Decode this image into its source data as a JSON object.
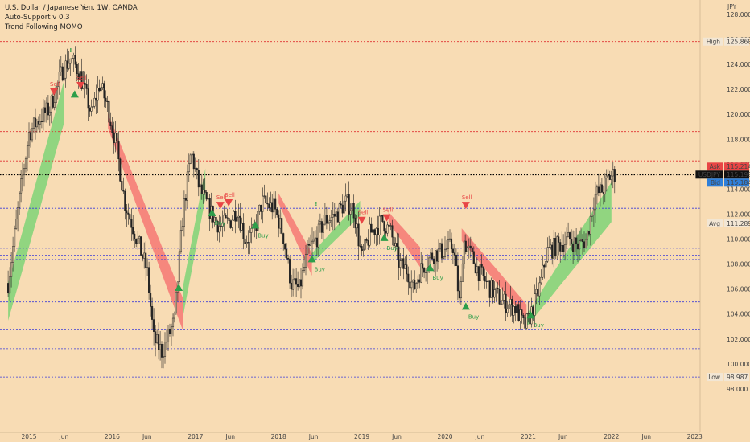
{
  "header": {
    "title": "U.S. Dollar / Japanese Yen, 1W, OANDA",
    "indicator_1": "Auto-Support v 0.3",
    "indicator_2": "Trend Following MOMO",
    "currency": "JPY"
  },
  "colors": {
    "background": "#f8dcb4",
    "candle": "#222222",
    "ribbon_up": "#6fd36f",
    "ribbon_down": "#f56b6b",
    "resistance_line": "#e03030",
    "support_line": "#3b3bd8",
    "current_line": "#000000",
    "buy": "#2e9e4a",
    "sell": "#e84545",
    "ask_badge": "#e84545",
    "bid_badge": "#2f7fd8",
    "last_badge": "#111111"
  },
  "chart_data": {
    "type": "candlestick",
    "symbol": "USDJPY",
    "interval": "1W",
    "y_axis": {
      "min": 96,
      "max": 129,
      "ticks": [
        "128.000",
        "126.000",
        "124.000",
        "122.000",
        "120.000",
        "118.000",
        "116.000",
        "114.000",
        "112.000",
        "110.000",
        "108.000",
        "106.000",
        "104.000",
        "102.000",
        "100.000",
        "98.000"
      ]
    },
    "x_axis": {
      "ticks": [
        {
          "label": "2015",
          "t": 2015.0
        },
        {
          "label": "Jun",
          "t": 2015.42
        },
        {
          "label": "2016",
          "t": 2016.0
        },
        {
          "label": "Jun",
          "t": 2016.42
        },
        {
          "label": "2017",
          "t": 2017.0
        },
        {
          "label": "Jun",
          "t": 2017.42
        },
        {
          "label": "2018",
          "t": 2018.0
        },
        {
          "label": "Jun",
          "t": 2018.42
        },
        {
          "label": "2019",
          "t": 2019.0
        },
        {
          "label": "Jun",
          "t": 2019.42
        },
        {
          "label": "2020",
          "t": 2020.0
        },
        {
          "label": "Jun",
          "t": 2020.42
        },
        {
          "label": "2021",
          "t": 2021.0
        },
        {
          "label": "Jun",
          "t": 2021.42
        },
        {
          "label": "2022",
          "t": 2022.0
        },
        {
          "label": "Jun",
          "t": 2022.42
        },
        {
          "label": "2023",
          "t": 2023.0
        }
      ]
    },
    "price_path": [
      [
        2014.75,
        106.5
      ],
      [
        2014.9,
        114
      ],
      [
        2015.0,
        118.5
      ],
      [
        2015.1,
        119.5
      ],
      [
        2015.25,
        120.5
      ],
      [
        2015.4,
        123.5
      ],
      [
        2015.5,
        124.5
      ],
      [
        2015.6,
        123.5
      ],
      [
        2015.75,
        120
      ],
      [
        2015.85,
        122.5
      ],
      [
        2015.95,
        120.5
      ],
      [
        2016.05,
        117.5
      ],
      [
        2016.15,
        113
      ],
      [
        2016.3,
        110
      ],
      [
        2016.42,
        107.5
      ],
      [
        2016.5,
        102
      ],
      [
        2016.6,
        101
      ],
      [
        2016.75,
        103.5
      ],
      [
        2016.85,
        112
      ],
      [
        2016.95,
        117
      ],
      [
        2017.05,
        114
      ],
      [
        2017.2,
        112
      ],
      [
        2017.3,
        111
      ],
      [
        2017.42,
        111.5
      ],
      [
        2017.5,
        112.5
      ],
      [
        2017.6,
        110
      ],
      [
        2017.7,
        110.5
      ],
      [
        2017.8,
        113
      ],
      [
        2017.95,
        112.5
      ],
      [
        2018.05,
        110.5
      ],
      [
        2018.15,
        106.5
      ],
      [
        2018.25,
        106
      ],
      [
        2018.35,
        109
      ],
      [
        2018.45,
        110
      ],
      [
        2018.55,
        111.5
      ],
      [
        2018.7,
        112
      ],
      [
        2018.8,
        113
      ],
      [
        2018.9,
        112.5
      ],
      [
        2019.0,
        108.5
      ],
      [
        2019.1,
        110.5
      ],
      [
        2019.25,
        111.5
      ],
      [
        2019.35,
        110.5
      ],
      [
        2019.45,
        108
      ],
      [
        2019.55,
        107.5
      ],
      [
        2019.62,
        106
      ],
      [
        2019.7,
        107.5
      ],
      [
        2019.85,
        108.8
      ],
      [
        2019.95,
        109
      ],
      [
        2020.1,
        109.5
      ],
      [
        2020.18,
        104.5
      ],
      [
        2020.22,
        110
      ],
      [
        2020.4,
        107.5
      ],
      [
        2020.55,
        106
      ],
      [
        2020.7,
        105
      ],
      [
        2020.85,
        104.5
      ],
      [
        2020.95,
        103
      ],
      [
        2021.0,
        103.5
      ],
      [
        2021.08,
        105
      ],
      [
        2021.15,
        106.5
      ],
      [
        2021.22,
        109
      ],
      [
        2021.35,
        109.5
      ],
      [
        2021.5,
        110
      ],
      [
        2021.6,
        109.5
      ],
      [
        2021.7,
        110
      ],
      [
        2021.8,
        113.5
      ],
      [
        2021.9,
        114
      ],
      [
        2021.97,
        115
      ],
      [
        2022.03,
        115.2
      ]
    ],
    "extend_to": 2022.05,
    "ribbon": [
      {
        "dir": "up",
        "t0": 2014.75,
        "t1": 2015.42,
        "c0": 105,
        "c1": 121,
        "w0": 1.5,
        "w1": 1.7
      },
      {
        "dir": "down",
        "t0": 2015.95,
        "t1": 2016.85,
        "c0": 119.5,
        "c1": 104,
        "w0": 0.6,
        "w1": 1.3
      },
      {
        "dir": "up",
        "t0": 2016.85,
        "t1": 2017.12,
        "c0": 105,
        "c1": 114.5,
        "w0": 1.2,
        "w1": 1.2
      },
      {
        "dir": "down",
        "t0": 2018.0,
        "t1": 2018.4,
        "c0": 113.3,
        "c1": 108,
        "w0": 0.4,
        "w1": 0.9
      },
      {
        "dir": "up",
        "t0": 2018.4,
        "t1": 2018.98,
        "c0": 108.5,
        "c1": 112.5,
        "w0": 0.4,
        "w1": 0.6
      },
      {
        "dir": "down",
        "t0": 2019.32,
        "t1": 2019.7,
        "c0": 111.8,
        "c1": 108.6,
        "w0": 0.4,
        "w1": 0.8
      },
      {
        "dir": "down",
        "t0": 2020.2,
        "t1": 2020.98,
        "c0": 110.4,
        "c1": 104.2,
        "w0": 0.5,
        "w1": 0.6
      },
      {
        "dir": "up",
        "t0": 2020.98,
        "t1": 2022.0,
        "c0": 103.5,
        "c1": 113,
        "w0": 0.5,
        "w1": 1.6
      }
    ],
    "horizontal_levels": [
      {
        "price": 125.86,
        "kind": "resistance"
      },
      {
        "price": 118.65,
        "kind": "resistance"
      },
      {
        "price": 116.3,
        "kind": "resistance"
      },
      {
        "price": 112.5,
        "kind": "support"
      },
      {
        "price": 109.3,
        "kind": "support"
      },
      {
        "price": 109.0,
        "kind": "support"
      },
      {
        "price": 108.75,
        "kind": "support"
      },
      {
        "price": 108.4,
        "kind": "support"
      },
      {
        "price": 105.0,
        "kind": "support"
      },
      {
        "price": 102.75,
        "kind": "support"
      },
      {
        "price": 101.25,
        "kind": "support"
      },
      {
        "price": 98.987,
        "kind": "support"
      }
    ],
    "current_price_line": 115.199,
    "price_labels": [
      {
        "tag": "High",
        "value": "125.860",
        "price": 125.86,
        "style": "plain"
      },
      {
        "tag": "Ask",
        "value": "115.214",
        "price": 115.214,
        "style": "ask",
        "offset": -10
      },
      {
        "tag": "USDJPY",
        "value": "115.199",
        "price": 115.199,
        "style": "last",
        "offset": 0
      },
      {
        "tag": "Bid",
        "value": "115.184",
        "price": 115.184,
        "style": "bid",
        "offset": 10
      },
      {
        "tag": "Avg",
        "value": "111.289",
        "price": 111.289,
        "style": "plain"
      },
      {
        "tag": "Low",
        "value": "98.987",
        "price": 98.987,
        "style": "plain"
      }
    ],
    "signals": [
      {
        "type": "sell",
        "t": 2015.3,
        "price": 121.8,
        "label": "Sell"
      },
      {
        "type": "sell",
        "t": 2015.62,
        "price": 122.3,
        "label": "Sell"
      },
      {
        "type": "buy",
        "t": 2015.55,
        "price": 121.7,
        "label": ""
      },
      {
        "type": "sell",
        "t": 2017.3,
        "price": 112.7,
        "label": "Sell"
      },
      {
        "type": "sell",
        "t": 2017.4,
        "price": 112.9,
        "label": "Sell"
      },
      {
        "type": "buy",
        "t": 2017.72,
        "price": 111.2,
        "label": "Buy"
      },
      {
        "type": "buy",
        "t": 2018.4,
        "price": 108.5,
        "label": "Buy"
      },
      {
        "type": "sell",
        "t": 2019.0,
        "price": 111.5,
        "label": "Sell"
      },
      {
        "type": "sell",
        "t": 2019.3,
        "price": 111.7,
        "label": "Sell"
      },
      {
        "type": "buy",
        "t": 2019.27,
        "price": 110.2,
        "label": "Buy"
      },
      {
        "type": "buy",
        "t": 2019.82,
        "price": 107.8,
        "label": "Buy"
      },
      {
        "type": "sell",
        "t": 2020.25,
        "price": 112.7,
        "label": "Sell"
      },
      {
        "type": "buy",
        "t": 2020.25,
        "price": 104.7,
        "label": "Buy"
      },
      {
        "type": "buy",
        "t": 2021.03,
        "price": 104.0,
        "label": "Buy"
      },
      {
        "type": "buy",
        "t": 2017.2,
        "price": 112.2,
        "label": "Buy"
      },
      {
        "type": "buy",
        "t": 2016.8,
        "price": 106.2,
        "label": ""
      }
    ],
    "exclamations": [
      {
        "t": 2015.5,
        "price": 125.0,
        "label": "!"
      },
      {
        "t": 2018.45,
        "price": 112.7,
        "label": "!"
      }
    ]
  }
}
